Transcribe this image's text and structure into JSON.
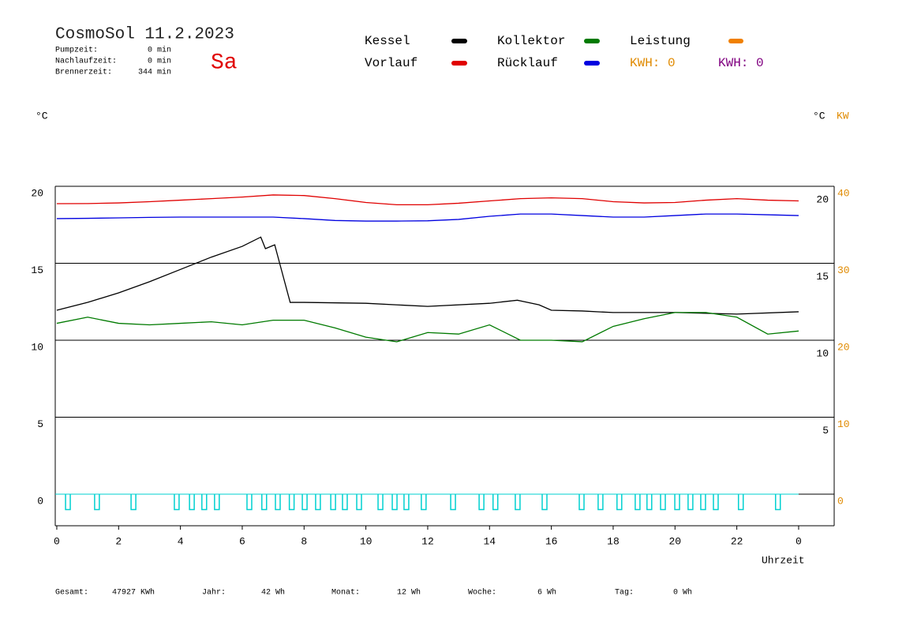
{
  "header": {
    "title": "CosmoSol 11.2.2023",
    "day": "Sa",
    "stats": [
      {
        "label": "Pumpzeit:",
        "value": "0 min"
      },
      {
        "label": "Nachlaufzeit:",
        "value": "0 min"
      },
      {
        "label": "Brennerzeit:",
        "value": "344 min"
      }
    ]
  },
  "footer": [
    {
      "label": "Gesamt:",
      "value": "47927 KWh"
    },
    {
      "label": "Jahr:",
      "value": "42 Wh"
    },
    {
      "label": "Monat:",
      "value": "12 Wh"
    },
    {
      "label": "Woche:",
      "value": "6 Wh"
    },
    {
      "label": "Tag:",
      "value": "0 Wh"
    }
  ],
  "chart_data": {
    "type": "line",
    "y_unit_left": "°C",
    "y_unit_right": "°C",
    "y2_unit": "KW",
    "x_label": "Uhrzeit",
    "kwh_labels": [
      {
        "text": "KWH: 0",
        "color": "#e08a00"
      },
      {
        "text": "KWH: 0",
        "color": "#800080"
      }
    ],
    "legend_extra": {
      "name": "Leistung",
      "color": "#f08000"
    },
    "xlim": [
      -0.05,
      25.15
    ],
    "xticks": [
      0,
      2,
      4,
      6,
      8,
      10,
      12,
      14,
      16,
      18,
      20,
      22,
      {
        "value": 24,
        "label": "0"
      }
    ],
    "ylim": [
      -2.05,
      20
    ],
    "yticks": [
      0,
      5,
      10,
      15,
      20
    ],
    "right_yticks": [
      5,
      10,
      15,
      20
    ],
    "y2lim": [
      -4.1,
      40
    ],
    "y2ticks": [
      0,
      10,
      20,
      30,
      40
    ],
    "grid": true,
    "series": [
      {
        "name": "Kessel",
        "color": "#000000",
        "x": [
          0,
          1,
          2,
          3,
          4,
          5,
          6,
          6.6,
          6.75,
          7.05,
          7.55,
          8,
          10,
          12,
          14,
          14.9,
          15.6,
          16,
          17,
          18,
          20,
          22,
          24
        ],
        "values": [
          11.95,
          12.46,
          13.08,
          13.8,
          14.6,
          15.4,
          16.1,
          16.7,
          15.95,
          16.2,
          12.46,
          12.46,
          12.4,
          12.2,
          12.4,
          12.6,
          12.3,
          11.95,
          11.9,
          11.8,
          11.8,
          11.7,
          11.85
        ]
      },
      {
        "name": "Vorlauf",
        "color": "#e00000",
        "x": [
          0,
          1,
          2,
          3,
          4,
          5,
          6,
          7,
          8,
          9,
          10,
          11,
          12,
          13,
          14,
          15,
          16,
          17,
          18,
          19,
          20,
          21,
          22,
          23,
          24
        ],
        "values": [
          18.87,
          18.88,
          18.92,
          19.0,
          19.1,
          19.2,
          19.3,
          19.44,
          19.4,
          19.2,
          18.95,
          18.8,
          18.8,
          18.9,
          19.05,
          19.2,
          19.25,
          19.2,
          19.0,
          18.92,
          18.95,
          19.1,
          19.2,
          19.1,
          19.05
        ]
      },
      {
        "name": "Kollektor",
        "color": "#007a00",
        "x": [
          0,
          1,
          2,
          3,
          4,
          5,
          6,
          7,
          8,
          9,
          10,
          11,
          12,
          13,
          14,
          15,
          16,
          17,
          18,
          19,
          20,
          21,
          22,
          23,
          24
        ],
        "values": [
          11.1,
          11.5,
          11.1,
          11.0,
          11.1,
          11.2,
          11.0,
          11.3,
          11.3,
          10.8,
          10.2,
          9.9,
          10.5,
          10.4,
          11.0,
          10.0,
          10.0,
          9.9,
          10.9,
          11.4,
          11.8,
          11.8,
          11.5,
          10.4,
          10.6
        ]
      },
      {
        "name": "Rücklauf",
        "color": "#0000e0",
        "x": [
          0,
          1,
          2,
          3,
          4,
          5,
          6,
          7,
          8,
          9,
          10,
          11,
          12,
          13,
          14,
          15,
          16,
          17,
          18,
          19,
          20,
          21,
          22,
          23,
          24
        ],
        "values": [
          17.9,
          17.92,
          17.95,
          17.98,
          18.0,
          18.0,
          18.0,
          18.0,
          17.9,
          17.78,
          17.74,
          17.74,
          17.76,
          17.85,
          18.05,
          18.2,
          18.2,
          18.1,
          18.0,
          18.0,
          18.1,
          18.2,
          18.2,
          18.15,
          18.1
        ]
      }
    ],
    "pulses": {
      "color": "#00d0d0",
      "x": [
        0.36,
        1.3,
        2.48,
        3.88,
        4.37,
        4.77,
        5.18,
        6.23,
        6.71,
        7.15,
        7.6,
        8.02,
        8.45,
        8.94,
        9.32,
        9.78,
        10.47,
        10.93,
        11.31,
        11.87,
        12.82,
        13.74,
        14.19,
        14.91,
        15.78,
        16.98,
        17.59,
        18.2,
        18.79,
        19.17,
        19.61,
        20.07,
        20.5,
        20.91,
        21.32,
        22.13,
        23.33
      ],
      "values": [
        -1,
        -1,
        -1,
        -1,
        -1,
        -1,
        -1,
        -1,
        -1,
        -1,
        -1,
        -1,
        -1,
        -1,
        -1,
        -1,
        -1,
        -1,
        -1,
        -1,
        -1,
        -1,
        -1,
        -1,
        -1,
        -1,
        -1,
        -1,
        -1,
        -1,
        -1,
        -1,
        -1,
        -1,
        -1,
        -1,
        -1
      ]
    }
  }
}
